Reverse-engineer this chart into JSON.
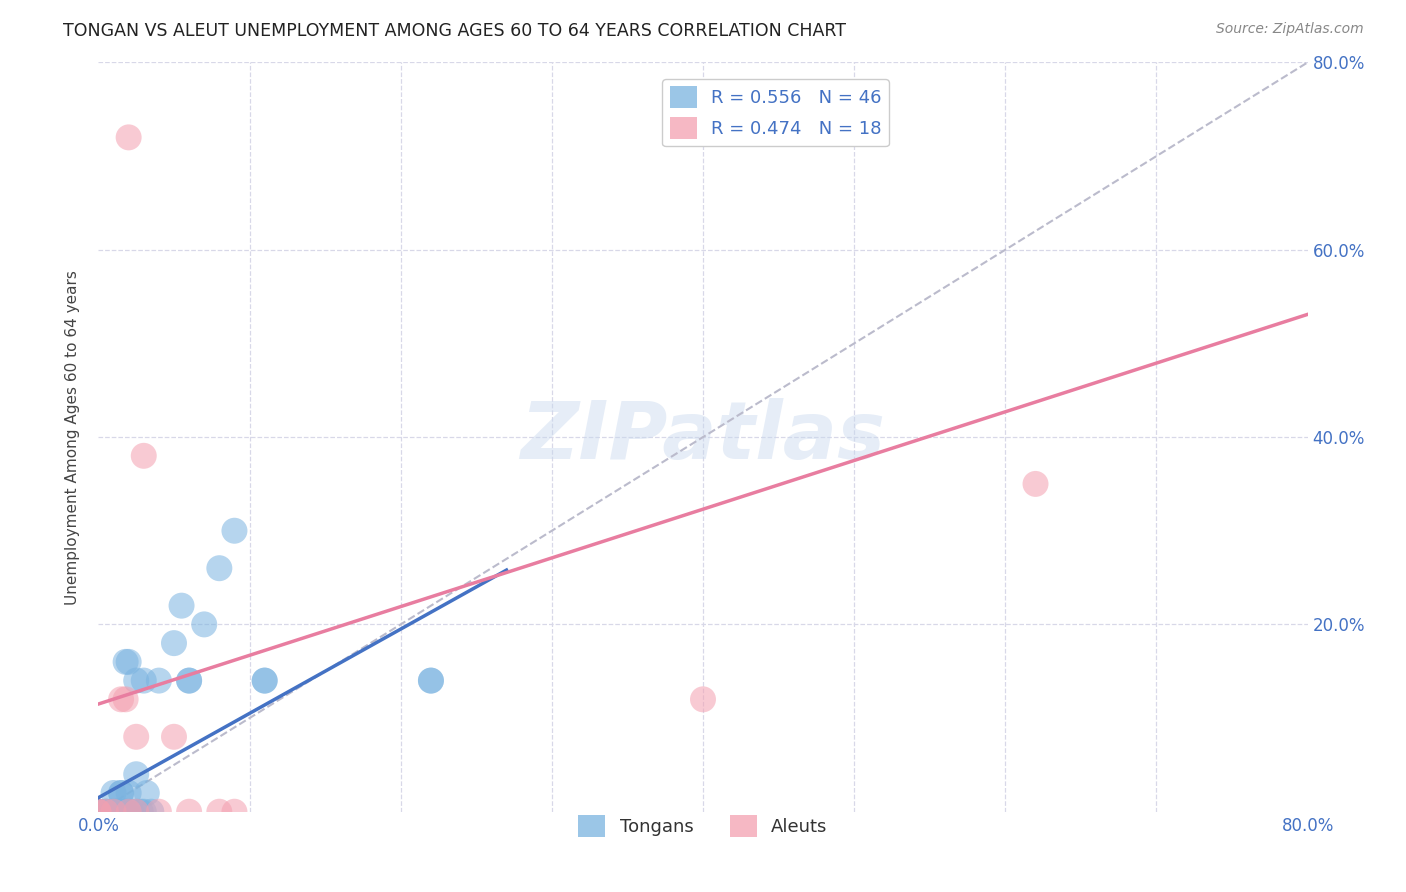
{
  "title": "TONGAN VS ALEUT UNEMPLOYMENT AMONG AGES 60 TO 64 YEARS CORRELATION CHART",
  "source": "Source: ZipAtlas.com",
  "ylabel": "Unemployment Among Ages 60 to 64 years",
  "xlim": [
    0.0,
    0.8
  ],
  "ylim": [
    0.0,
    0.8
  ],
  "background_color": "#ffffff",
  "grid_color": "#d8d8e8",
  "tongan_color": "#7ab3e0",
  "aleut_color": "#f4a0b0",
  "tongan_R": 0.556,
  "tongan_N": 46,
  "aleut_R": 0.474,
  "aleut_N": 18,
  "dashed_line_color": "#bbbbcc",
  "blue_line_color": "#4472c4",
  "pink_line_color": "#e87da0",
  "tongan_scatter": [
    [
      0.0,
      0.0
    ],
    [
      0.0,
      0.0
    ],
    [
      0.0,
      0.0
    ],
    [
      0.0,
      0.0
    ],
    [
      0.0,
      0.0
    ],
    [
      0.0,
      0.0
    ],
    [
      0.0,
      0.0
    ],
    [
      0.0,
      0.0
    ],
    [
      0.005,
      0.0
    ],
    [
      0.005,
      0.0
    ],
    [
      0.008,
      0.0
    ],
    [
      0.01,
      0.0
    ],
    [
      0.01,
      0.0
    ],
    [
      0.01,
      0.02
    ],
    [
      0.012,
      0.0
    ],
    [
      0.012,
      0.0
    ],
    [
      0.015,
      0.0
    ],
    [
      0.015,
      0.02
    ],
    [
      0.015,
      0.02
    ],
    [
      0.018,
      0.0
    ],
    [
      0.018,
      0.0
    ],
    [
      0.02,
      0.0
    ],
    [
      0.02,
      0.02
    ],
    [
      0.022,
      0.0
    ],
    [
      0.025,
      0.0
    ],
    [
      0.025,
      0.04
    ],
    [
      0.028,
      0.0
    ],
    [
      0.03,
      0.0
    ],
    [
      0.032,
      0.02
    ],
    [
      0.035,
      0.0
    ],
    [
      0.04,
      0.14
    ],
    [
      0.05,
      0.18
    ],
    [
      0.055,
      0.22
    ],
    [
      0.06,
      0.14
    ],
    [
      0.06,
      0.14
    ],
    [
      0.07,
      0.2
    ],
    [
      0.08,
      0.26
    ],
    [
      0.09,
      0.3
    ],
    [
      0.11,
      0.14
    ],
    [
      0.11,
      0.14
    ],
    [
      0.22,
      0.14
    ],
    [
      0.22,
      0.14
    ],
    [
      0.018,
      0.16
    ],
    [
      0.02,
      0.16
    ],
    [
      0.025,
      0.14
    ],
    [
      0.03,
      0.14
    ]
  ],
  "aleut_scatter": [
    [
      0.0,
      0.0
    ],
    [
      0.0,
      0.0
    ],
    [
      0.005,
      0.0
    ],
    [
      0.01,
      0.0
    ],
    [
      0.015,
      0.12
    ],
    [
      0.018,
      0.12
    ],
    [
      0.02,
      0.0
    ],
    [
      0.025,
      0.0
    ],
    [
      0.025,
      0.08
    ],
    [
      0.03,
      0.38
    ],
    [
      0.04,
      0.0
    ],
    [
      0.05,
      0.08
    ],
    [
      0.06,
      0.0
    ],
    [
      0.08,
      0.0
    ],
    [
      0.09,
      0.0
    ],
    [
      0.4,
      0.12
    ],
    [
      0.62,
      0.35
    ],
    [
      0.02,
      0.72
    ]
  ]
}
